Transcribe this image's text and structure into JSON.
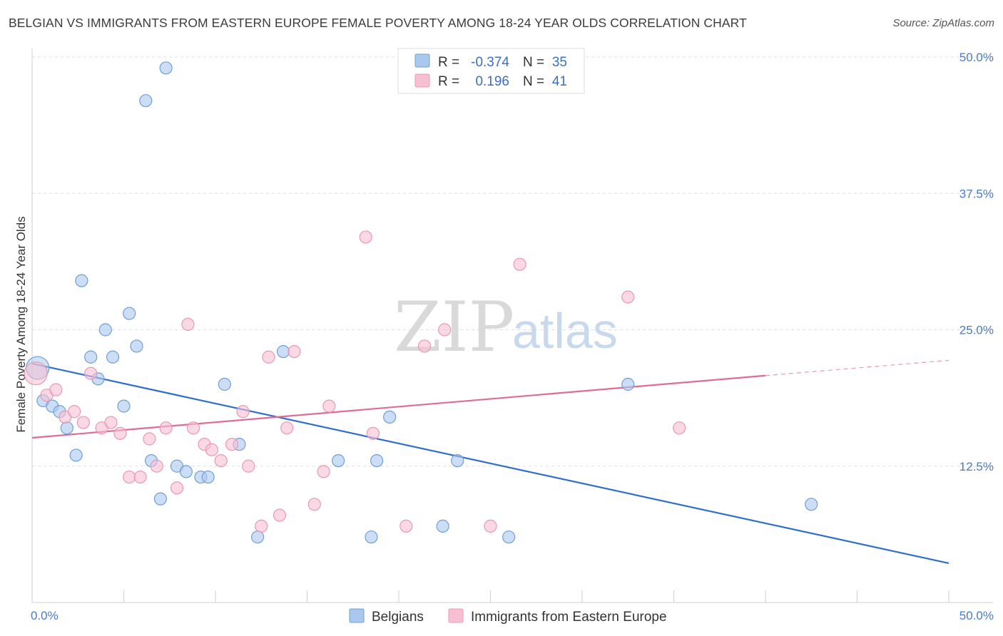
{
  "header": {
    "title": "BELGIAN VS IMMIGRANTS FROM EASTERN EUROPE FEMALE POVERTY AMONG 18-24 YEAR OLDS CORRELATION CHART",
    "source": "Source: ZipAtlas.com"
  },
  "watermark": {
    "zip": "ZIP",
    "atlas": "atlas"
  },
  "legend": {
    "r_label": "R =",
    "n_label": "N =",
    "rows": [
      {
        "r": "-0.374",
        "n": "35"
      },
      {
        "r": "0.196",
        "n": "41"
      }
    ]
  },
  "colors": {
    "blue_fill": "#aac8ee",
    "blue_stroke": "#6f9fd8",
    "blue_line": "#2f6fcc",
    "pink_fill": "#f6c0d2",
    "pink_stroke": "#e898b4",
    "pink_line": "#e06c96",
    "grid": "#dddddd"
  },
  "chart_data": {
    "type": "scatter",
    "title": "BELGIAN VS IMMIGRANTS FROM EASTERN EUROPE FEMALE POVERTY AMONG 18-24 YEAR OLDS CORRELATION CHART",
    "xlabel": "",
    "ylabel": "Female Poverty Among 18-24 Year Olds",
    "xlim": [
      0,
      50
    ],
    "ylim": [
      0,
      51.5
    ],
    "x_tick_labels": [
      "0.0%",
      "50.0%"
    ],
    "y_ticks": [
      12.5,
      25.0,
      37.5,
      50.0
    ],
    "y_tick_labels": [
      "12.5%",
      "25.0%",
      "37.5%",
      "50.0%"
    ],
    "grid": true,
    "legend_position": "bottom",
    "series": [
      {
        "name": "Belgians",
        "points": [
          [
            0.3,
            21.5
          ],
          [
            0.6,
            18.5
          ],
          [
            1.1,
            18.0
          ],
          [
            1.5,
            17.5
          ],
          [
            1.9,
            16.0
          ],
          [
            2.4,
            13.5
          ],
          [
            2.7,
            29.5
          ],
          [
            3.2,
            22.5
          ],
          [
            3.6,
            20.5
          ],
          [
            4.0,
            25.0
          ],
          [
            4.4,
            22.5
          ],
          [
            5.0,
            18.0
          ],
          [
            5.3,
            26.5
          ],
          [
            5.7,
            23.5
          ],
          [
            6.2,
            46.0
          ],
          [
            6.5,
            13.0
          ],
          [
            7.0,
            9.5
          ],
          [
            7.3,
            49.0
          ],
          [
            7.9,
            12.5
          ],
          [
            8.4,
            12.0
          ],
          [
            9.2,
            11.5
          ],
          [
            9.6,
            11.5
          ],
          [
            10.5,
            20.0
          ],
          [
            11.3,
            14.5
          ],
          [
            12.3,
            6.0
          ],
          [
            13.7,
            23.0
          ],
          [
            16.7,
            13.0
          ],
          [
            18.5,
            6.0
          ],
          [
            18.8,
            13.0
          ],
          [
            19.5,
            17.0
          ],
          [
            22.4,
            7.0
          ],
          [
            23.2,
            13.0
          ],
          [
            26.0,
            6.0
          ],
          [
            32.5,
            20.0
          ],
          [
            42.5,
            9.0
          ]
        ],
        "trend": {
          "x": [
            0,
            50
          ],
          "y": [
            21.9,
            3.6
          ]
        }
      },
      {
        "name": "Immigrants from Eastern Europe",
        "points": [
          [
            0.2,
            21.0
          ],
          [
            0.8,
            19.0
          ],
          [
            1.3,
            19.5
          ],
          [
            1.8,
            17.0
          ],
          [
            2.3,
            17.5
          ],
          [
            2.8,
            16.5
          ],
          [
            3.2,
            21.0
          ],
          [
            3.8,
            16.0
          ],
          [
            4.3,
            16.5
          ],
          [
            4.8,
            15.5
          ],
          [
            5.3,
            11.5
          ],
          [
            5.9,
            11.5
          ],
          [
            6.4,
            15.0
          ],
          [
            6.8,
            12.5
          ],
          [
            7.3,
            16.0
          ],
          [
            7.9,
            10.5
          ],
          [
            8.5,
            25.5
          ],
          [
            8.8,
            16.0
          ],
          [
            9.4,
            14.5
          ],
          [
            9.8,
            14.0
          ],
          [
            10.3,
            13.0
          ],
          [
            10.9,
            14.5
          ],
          [
            11.5,
            17.5
          ],
          [
            11.8,
            12.5
          ],
          [
            12.5,
            7.0
          ],
          [
            12.9,
            22.5
          ],
          [
            13.5,
            8.0
          ],
          [
            13.9,
            16.0
          ],
          [
            14.3,
            23.0
          ],
          [
            15.4,
            9.0
          ],
          [
            15.9,
            12.0
          ],
          [
            16.2,
            18.0
          ],
          [
            18.2,
            33.5
          ],
          [
            18.6,
            15.5
          ],
          [
            20.4,
            7.0
          ],
          [
            21.4,
            23.5
          ],
          [
            22.5,
            25.0
          ],
          [
            25.0,
            7.0
          ],
          [
            26.6,
            31.0
          ],
          [
            32.5,
            28.0
          ],
          [
            35.3,
            16.0
          ]
        ],
        "trend": {
          "x": [
            0,
            40
          ],
          "y": [
            15.1,
            20.8
          ],
          "dashed_extension": {
            "x": [
              40,
              50
            ],
            "y": [
              20.8,
              22.2
            ]
          }
        }
      }
    ]
  }
}
